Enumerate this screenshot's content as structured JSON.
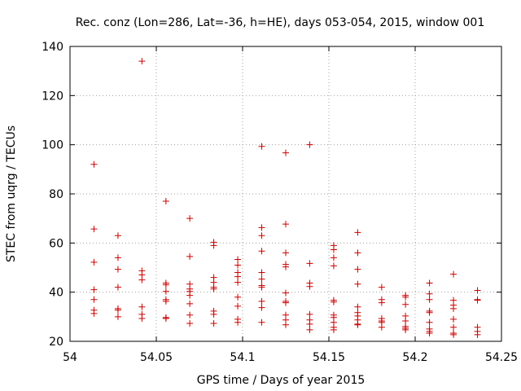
{
  "chart_data": {
    "type": "scatter",
    "title": "Rec. conz (Lon=286, Lat=-36, h=HE), days 053-054, 2015, window 001",
    "xlabel": "GPS time / Days of year 2015",
    "ylabel": "STEC from uqrg / TECUs",
    "xlim": [
      54,
      54.25
    ],
    "ylim": [
      20,
      140
    ],
    "xticks": [
      54,
      54.05,
      54.1,
      54.15,
      54.2,
      54.25
    ],
    "xtick_labels": [
      "54",
      "54.05",
      "54.1",
      "54.15",
      "54.2",
      "54.25"
    ],
    "yticks": [
      20,
      40,
      60,
      80,
      100,
      120,
      140
    ],
    "ytick_labels": [
      "20",
      "40",
      "60",
      "80",
      "100",
      "120",
      "140"
    ],
    "grid": true,
    "marker": "+",
    "color": "#cc0000",
    "series": [
      {
        "name": "STEC",
        "points": [
          [
            54.0139,
            92.0
          ],
          [
            54.0139,
            65.7
          ],
          [
            54.0139,
            52.2
          ],
          [
            54.0139,
            41.0
          ],
          [
            54.0139,
            37.0
          ],
          [
            54.0139,
            32.7
          ],
          [
            54.0139,
            31.3
          ],
          [
            54.0278,
            63.0
          ],
          [
            54.0278,
            54.0
          ],
          [
            54.0278,
            49.3
          ],
          [
            54.0278,
            42.0
          ],
          [
            54.0278,
            33.3
          ],
          [
            54.0278,
            32.7
          ],
          [
            54.0278,
            30.0
          ],
          [
            54.0417,
            134.0
          ],
          [
            54.0417,
            48.7
          ],
          [
            54.0417,
            47.0
          ],
          [
            54.0417,
            45.0
          ],
          [
            54.0417,
            34.0
          ],
          [
            54.0417,
            31.0
          ],
          [
            54.0417,
            29.3
          ],
          [
            54.0556,
            77.0
          ],
          [
            54.0556,
            43.7
          ],
          [
            54.0556,
            43.0
          ],
          [
            54.0556,
            40.3
          ],
          [
            54.0556,
            37.0
          ],
          [
            54.0556,
            36.3
          ],
          [
            54.0556,
            29.7
          ],
          [
            54.0556,
            29.3
          ],
          [
            54.0694,
            70.0
          ],
          [
            54.0694,
            54.5
          ],
          [
            54.0694,
            43.3
          ],
          [
            54.0694,
            41.3
          ],
          [
            54.0694,
            40.3
          ],
          [
            54.0694,
            38.7
          ],
          [
            54.0694,
            35.3
          ],
          [
            54.0694,
            30.7
          ],
          [
            54.0694,
            27.3
          ],
          [
            54.0833,
            60.3
          ],
          [
            54.0833,
            59.0
          ],
          [
            54.0833,
            46.0
          ],
          [
            54.0833,
            44.0
          ],
          [
            54.0833,
            42.0
          ],
          [
            54.0833,
            41.3
          ],
          [
            54.0833,
            32.3
          ],
          [
            54.0833,
            31.0
          ],
          [
            54.0833,
            27.3
          ],
          [
            54.0972,
            53.3
          ],
          [
            54.0972,
            51.0
          ],
          [
            54.0972,
            48.0
          ],
          [
            54.0972,
            46.3
          ],
          [
            54.0972,
            44.0
          ],
          [
            54.0972,
            38.0
          ],
          [
            54.0972,
            34.3
          ],
          [
            54.0972,
            29.0
          ],
          [
            54.0972,
            27.7
          ],
          [
            54.1111,
            99.3
          ],
          [
            54.1111,
            66.3
          ],
          [
            54.1111,
            63.0
          ],
          [
            54.1111,
            56.7
          ],
          [
            54.1111,
            48.0
          ],
          [
            54.1111,
            45.3
          ],
          [
            54.1111,
            42.7
          ],
          [
            54.1111,
            42.0
          ],
          [
            54.1111,
            36.3
          ],
          [
            54.1111,
            33.7
          ],
          [
            54.1111,
            27.7
          ],
          [
            54.125,
            96.7
          ],
          [
            54.125,
            67.7
          ],
          [
            54.125,
            56.0
          ],
          [
            54.125,
            51.3
          ],
          [
            54.125,
            50.3
          ],
          [
            54.125,
            39.7
          ],
          [
            54.125,
            36.3
          ],
          [
            54.125,
            35.7
          ],
          [
            54.125,
            30.7
          ],
          [
            54.125,
            28.7
          ],
          [
            54.125,
            26.7
          ],
          [
            54.1389,
            100.0
          ],
          [
            54.1389,
            51.7
          ],
          [
            54.1389,
            43.7
          ],
          [
            54.1389,
            42.3
          ],
          [
            54.1389,
            31.0
          ],
          [
            54.1389,
            28.7
          ],
          [
            54.1389,
            27.0
          ],
          [
            54.1389,
            24.7
          ],
          [
            54.1528,
            59.0
          ],
          [
            54.1528,
            57.3
          ],
          [
            54.1528,
            54.0
          ],
          [
            54.1528,
            50.7
          ],
          [
            54.1528,
            36.7
          ],
          [
            54.1528,
            36.0
          ],
          [
            54.1528,
            30.7
          ],
          [
            54.1528,
            29.7
          ],
          [
            54.1528,
            27.7
          ],
          [
            54.1528,
            25.7
          ],
          [
            54.1528,
            24.7
          ],
          [
            54.1667,
            64.3
          ],
          [
            54.1667,
            56.0
          ],
          [
            54.1667,
            49.3
          ],
          [
            54.1667,
            43.3
          ],
          [
            54.1667,
            34.0
          ],
          [
            54.1667,
            31.7
          ],
          [
            54.1667,
            30.3
          ],
          [
            54.1667,
            28.7
          ],
          [
            54.1667,
            27.0
          ],
          [
            54.1667,
            26.7
          ],
          [
            54.1806,
            42.0
          ],
          [
            54.1806,
            37.0
          ],
          [
            54.1806,
            35.7
          ],
          [
            54.1806,
            29.3
          ],
          [
            54.1806,
            28.3
          ],
          [
            54.1806,
            27.7
          ],
          [
            54.1806,
            25.7
          ],
          [
            54.1944,
            38.7
          ],
          [
            54.1944,
            38.0
          ],
          [
            54.1944,
            35.0
          ],
          [
            54.1944,
            30.3
          ],
          [
            54.1944,
            28.3
          ],
          [
            54.1944,
            26.0
          ],
          [
            54.1944,
            25.3
          ],
          [
            54.1944,
            24.7
          ],
          [
            54.2083,
            43.7
          ],
          [
            54.2083,
            39.3
          ],
          [
            54.2083,
            37.0
          ],
          [
            54.2083,
            32.3
          ],
          [
            54.2083,
            31.7
          ],
          [
            54.2083,
            27.7
          ],
          [
            54.2083,
            25.0
          ],
          [
            54.2083,
            24.0
          ],
          [
            54.2083,
            23.3
          ],
          [
            54.2222,
            47.3
          ],
          [
            54.2222,
            36.7
          ],
          [
            54.2222,
            34.7
          ],
          [
            54.2222,
            33.3
          ],
          [
            54.2222,
            29.0
          ],
          [
            54.2222,
            25.7
          ],
          [
            54.2222,
            23.3
          ],
          [
            54.2222,
            22.7
          ],
          [
            54.2361,
            40.7
          ],
          [
            54.2361,
            37.0
          ],
          [
            54.2361,
            36.7
          ],
          [
            54.2361,
            25.7
          ],
          [
            54.2361,
            24.0
          ],
          [
            54.2361,
            22.7
          ]
        ]
      }
    ]
  }
}
